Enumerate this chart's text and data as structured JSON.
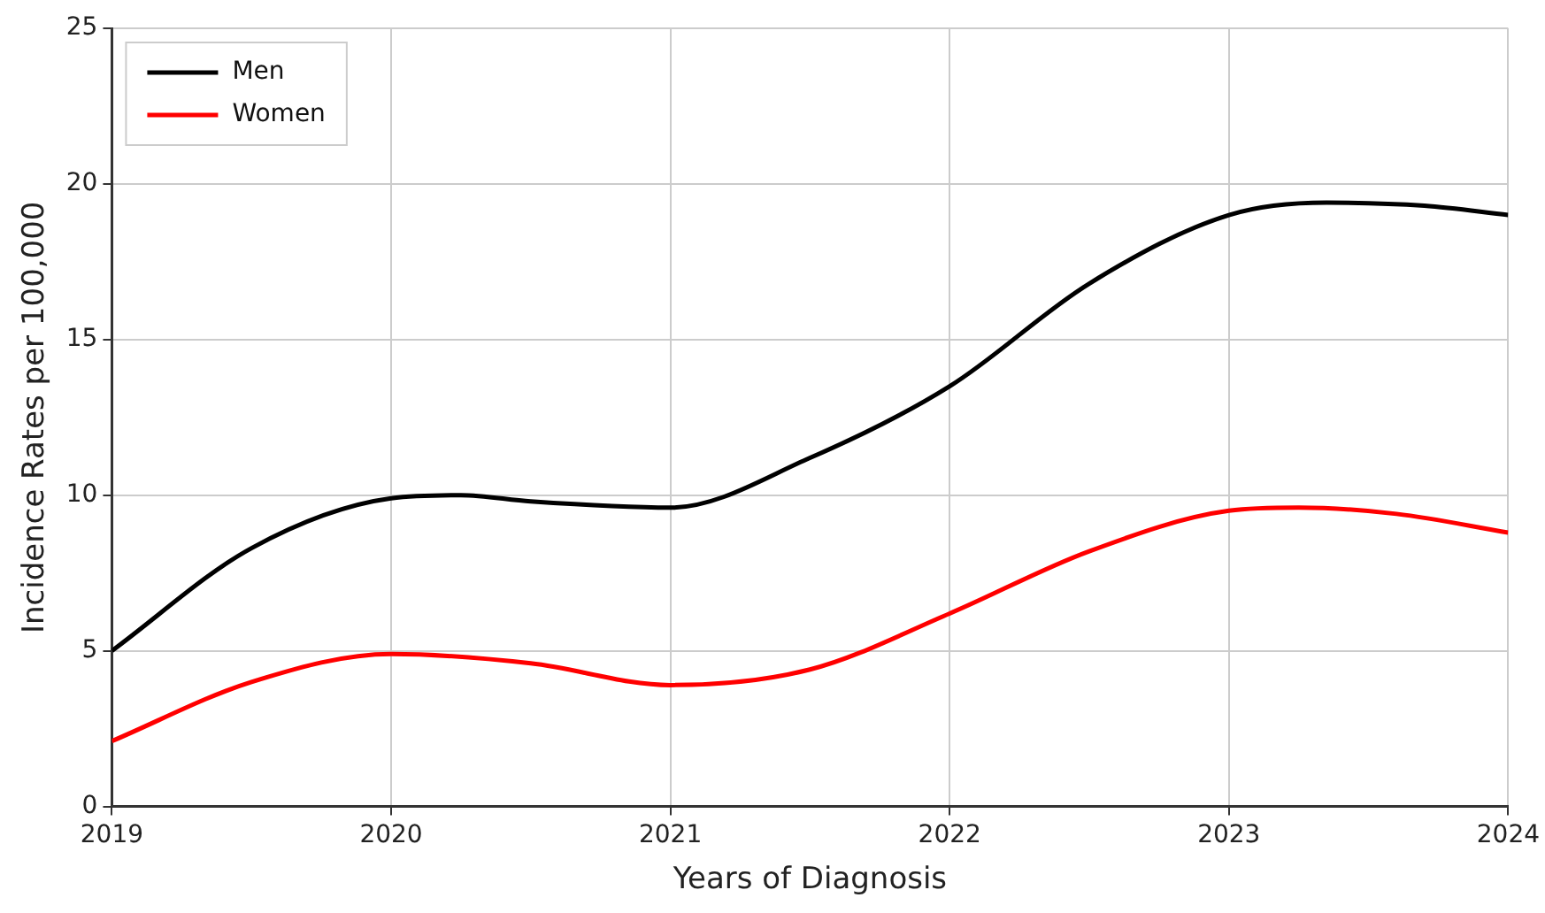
{
  "chart_data": {
    "type": "line",
    "xlabel": "Years of Diagnosis",
    "ylabel": "Incidence Rates per 100,000",
    "xlim": [
      2019,
      2024
    ],
    "xticks": [
      2019,
      2020,
      2021,
      2022,
      2023,
      2024
    ],
    "ylim": [
      0,
      25
    ],
    "yticks": [
      0,
      5,
      10,
      15,
      20,
      25
    ],
    "grid": true,
    "legend": "top left",
    "marker": "none",
    "line_style": "solid",
    "series": [
      {
        "name": "Men",
        "color": "#000000",
        "x": [
          2019,
          2019.5,
          2020,
          2020.25,
          2020.5,
          2021,
          2021.5,
          2022,
          2022.5,
          2023,
          2023.35,
          2023.7,
          2024
        ],
        "values": [
          5,
          8.3,
          9.9,
          10,
          9.8,
          9.6,
          11.2,
          13.5,
          16.8,
          19,
          19.4,
          19.3,
          19
        ]
      },
      {
        "name": "Women",
        "color": "#ff0000",
        "x": [
          2019,
          2019.5,
          2020,
          2020.5,
          2021,
          2021.5,
          2022,
          2022.5,
          2023,
          2023.25,
          2023.6,
          2024
        ],
        "values": [
          2.1,
          4,
          4.9,
          4.6,
          3.9,
          4.4,
          6.2,
          8.2,
          9.5,
          9.6,
          9.4,
          8.8
        ]
      }
    ]
  }
}
